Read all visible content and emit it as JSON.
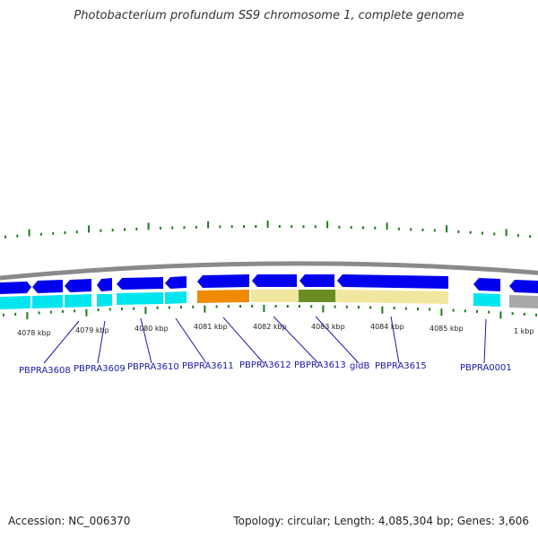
{
  "title": "Photobacterium profundum SS9 chromosome 1, complete genome",
  "footer": {
    "accession": "Accession: NC_006370",
    "summary": "Topology: circular; Length: 4,085,304 bp; Genes: 3,606"
  },
  "colors": {
    "backbone": "#8a8a8a",
    "forward_gene": "#0000ee",
    "cds_track": "#00e5ee",
    "tick": "#1e7a1e",
    "highlight_orange": "#f08a00",
    "highlight_khaki": "#f0e6a0",
    "highlight_olive": "#6b8e23",
    "gray_feature": "#a9a9a9",
    "label": "#1a1aa6"
  },
  "kbp_labels": [
    "4078 kbp",
    "4079 kbp",
    "4080 kbp",
    "4081 kbp",
    "4082 kbp",
    "4083 kbp",
    "4084 kbp",
    "4085 kbp",
    "1 kbp"
  ],
  "genes": [
    "PBPRA3608",
    "PBPRA3609",
    "PBPRA3610",
    "PBPRA3611",
    "PBPRA3612",
    "PBPRA3613",
    "gidB",
    "PBPRA3615",
    "PBPRA0001"
  ]
}
